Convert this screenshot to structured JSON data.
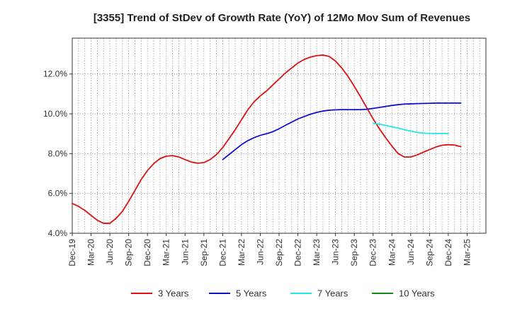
{
  "chart_data": {
    "type": "line",
    "title": "[3355]  Trend of StDev of Growth Rate (YoY) of 12Mo Mov Sum of Revenues",
    "xlabel": "",
    "ylabel": "",
    "ylim": [
      4.0,
      13.8
    ],
    "yticks": [
      4.0,
      6.0,
      8.0,
      10.0,
      12.0
    ],
    "ytick_labels": [
      "4.0%",
      "6.0%",
      "8.0%",
      "10.0%",
      "12.0%"
    ],
    "x_start_index": 0,
    "x_end_index": 66,
    "xtick_labels": [
      "Dec-19",
      "Mar-20",
      "Jun-20",
      "Sep-20",
      "Dec-20",
      "Mar-21",
      "Jun-21",
      "Sep-21",
      "Dec-21",
      "Mar-22",
      "Jun-22",
      "Sep-22",
      "Dec-22",
      "Mar-23",
      "Jun-23",
      "Sep-23",
      "Dec-23",
      "Mar-24",
      "Jun-24",
      "Sep-24",
      "Dec-24",
      "Mar-25"
    ],
    "grid": true,
    "legend_position": "bottom",
    "series": [
      {
        "name": "3 Years",
        "color": "#dd1111",
        "start_index": 0,
        "values": [
          5.5,
          5.35,
          5.15,
          4.9,
          4.65,
          4.5,
          4.5,
          4.75,
          5.1,
          5.6,
          6.15,
          6.7,
          7.15,
          7.5,
          7.75,
          7.87,
          7.9,
          7.83,
          7.7,
          7.58,
          7.52,
          7.55,
          7.7,
          7.95,
          8.3,
          8.75,
          9.2,
          9.7,
          10.2,
          10.6,
          10.9,
          11.15,
          11.45,
          11.75,
          12.05,
          12.3,
          12.55,
          12.73,
          12.85,
          12.92,
          12.95,
          12.88,
          12.65,
          12.3,
          11.88,
          11.38,
          10.85,
          10.3,
          9.75,
          9.25,
          8.8,
          8.38,
          8.0,
          7.83,
          7.83,
          7.93,
          8.07,
          8.2,
          8.33,
          8.42,
          8.45,
          8.43,
          8.35
        ]
      },
      {
        "name": "5 Years",
        "color": "#1111cc",
        "start_index": 24,
        "values": [
          7.7,
          7.95,
          8.2,
          8.45,
          8.65,
          8.8,
          8.92,
          9.0,
          9.1,
          9.25,
          9.42,
          9.58,
          9.74,
          9.86,
          9.98,
          10.07,
          10.14,
          10.18,
          10.2,
          10.21,
          10.21,
          10.21,
          10.21,
          10.23,
          10.27,
          10.32,
          10.37,
          10.42,
          10.46,
          10.49,
          10.5,
          10.51,
          10.52,
          10.53,
          10.54,
          10.54,
          10.54,
          10.54,
          10.54
        ]
      },
      {
        "name": "7 Years",
        "color": "#22e5e5",
        "start_index": 48,
        "values": [
          9.52,
          9.48,
          9.42,
          9.35,
          9.28,
          9.2,
          9.13,
          9.07,
          9.03,
          9.01,
          9.01,
          9.01,
          9.01
        ]
      },
      {
        "name": "10 Years",
        "color": "#118811",
        "start_index": 0,
        "values": []
      }
    ]
  }
}
